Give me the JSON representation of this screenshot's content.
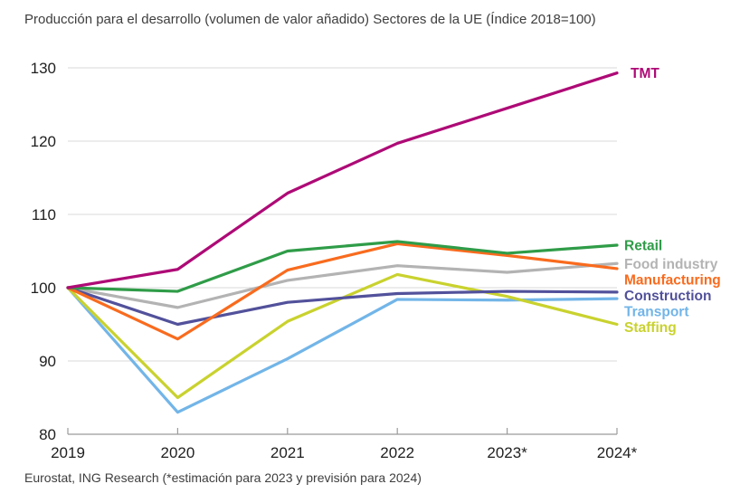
{
  "title": "Producción para el desarrollo (volumen de valor añadido) Sectores de la UE (Índice 2018=100)",
  "footer": "Eurostat, ING Research (*estimación para 2023 y previsión para 2024)",
  "colors": {
    "gridline": "#d9d9d9",
    "axis_line": "#9b9b9b",
    "tick_label": "#1f1f1f",
    "title_text": "#3e3e3e"
  },
  "chart_data": {
    "type": "line",
    "title": "Producción para el desarrollo (volumen de valor añadido) Sectores de la UE (Índice 2018=100)",
    "x": [
      "2019",
      "2020",
      "2021",
      "2022",
      "2023*",
      "2024*"
    ],
    "ylim": [
      80,
      130
    ],
    "yticks": [
      80,
      90,
      100,
      110,
      120,
      130
    ],
    "grid": "horizontal",
    "legend_position": "right-of-line-ends",
    "series": [
      {
        "name": "TMT",
        "color": "#ae0a76",
        "values": [
          100,
          102.5,
          112.9,
          119.7,
          124.5,
          129.3
        ]
      },
      {
        "name": "Retail",
        "color": "#2f9c48",
        "values": [
          100,
          99.5,
          105.0,
          106.3,
          104.7,
          105.8
        ]
      },
      {
        "name": "Food industry",
        "color": "#b3b3b3",
        "values": [
          100,
          97.3,
          101.0,
          103.0,
          102.1,
          103.3
        ]
      },
      {
        "name": "Manufacturing",
        "color": "#f96b1e",
        "values": [
          100,
          93.0,
          102.4,
          106.0,
          104.4,
          102.6
        ]
      },
      {
        "name": "Construction",
        "color": "#52519b",
        "values": [
          100,
          95.0,
          98.0,
          99.2,
          99.5,
          99.4
        ]
      },
      {
        "name": "Transport",
        "color": "#72b5e8",
        "values": [
          100,
          83.0,
          90.3,
          98.4,
          98.3,
          98.5
        ]
      },
      {
        "name": "Staffing",
        "color": "#c9d22e",
        "values": [
          100,
          85.0,
          95.4,
          101.8,
          98.8,
          95.0
        ]
      }
    ]
  }
}
